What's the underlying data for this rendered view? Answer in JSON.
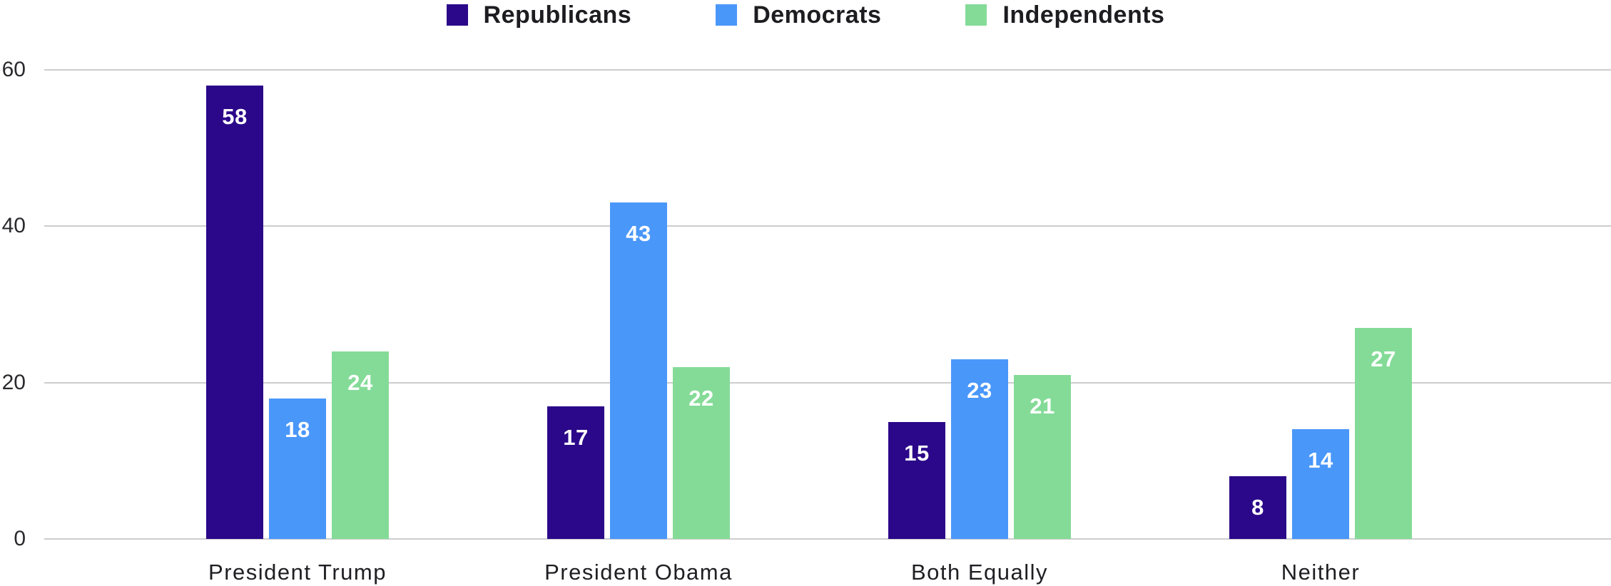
{
  "chart_data": {
    "type": "bar",
    "title": "",
    "xlabel": "",
    "ylabel": "",
    "categories": [
      "President Trump",
      "President Obama",
      "Both Equally",
      "Neither"
    ],
    "series": [
      {
        "name": "Republicans",
        "color": "#2B0889",
        "values": [
          58,
          17,
          15,
          8
        ]
      },
      {
        "name": "Democrats",
        "color": "#4A97FA",
        "values": [
          18,
          43,
          23,
          14
        ]
      },
      {
        "name": "Independents",
        "color": "#84DB97",
        "values": [
          24,
          22,
          21,
          27
        ]
      }
    ],
    "ylim": [
      0,
      60
    ],
    "yticks": [
      0,
      20,
      40,
      60
    ],
    "grid": true,
    "legend_position": "top",
    "value_label_placement": "inside-top",
    "colors": {
      "gridline": "#CDCDCD",
      "axis_text": "#2A2A2E",
      "category_text": "#1F1F23",
      "legend_text": "#1D1D21",
      "value_text": "#FFFFFF",
      "background": "#FFFFFF"
    }
  }
}
